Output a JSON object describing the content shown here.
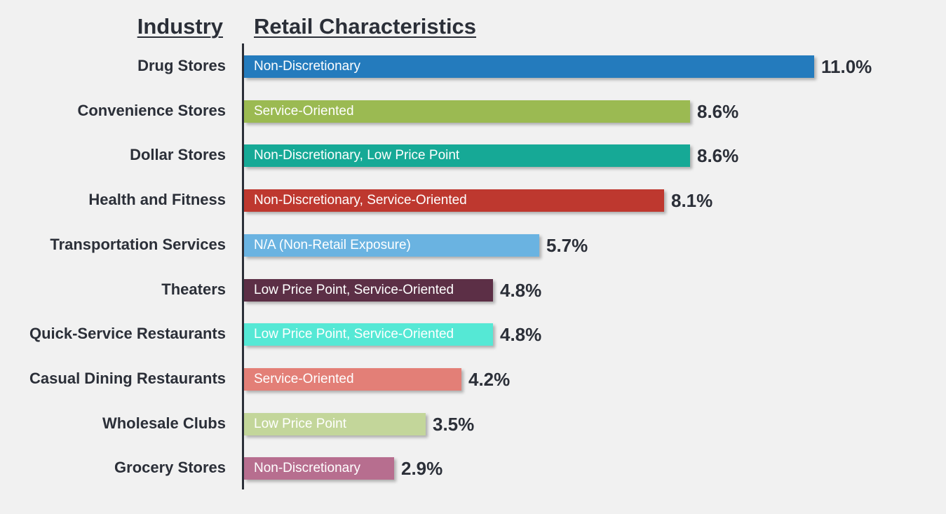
{
  "chart_data": {
    "type": "bar",
    "orientation": "horizontal",
    "title": "",
    "column_headers": {
      "category": "Industry",
      "description": "Retail Characteristics"
    },
    "xlabel": "",
    "ylabel": "",
    "xlim": [
      0,
      11.0
    ],
    "grid": false,
    "legend": "none",
    "categories": [
      "Drug Stores",
      "Convenience Stores",
      "Dollar Stores",
      "Health and Fitness",
      "Transportation Services",
      "Theaters",
      "Quick-Service Restaurants",
      "Casual Dining Restaurants",
      "Wholesale Clubs",
      "Grocery Stores"
    ],
    "values": [
      11.0,
      8.6,
      8.6,
      8.1,
      5.7,
      4.8,
      4.8,
      4.2,
      3.5,
      2.9
    ],
    "value_labels": [
      "11.0%",
      "8.6%",
      "8.6%",
      "8.1%",
      "5.7%",
      "4.8%",
      "4.8%",
      "4.2%",
      "3.5%",
      "2.9%"
    ],
    "bar_labels": [
      "Non-Discretionary",
      "Service-Oriented",
      "Non-Discretionary, Low Price Point",
      "Non-Discretionary, Service-Oriented",
      "N/A (Non-Retail Exposure)",
      "Low Price Point, Service-Oriented",
      "Low Price Point, Service-Oriented",
      "Service-Oriented",
      "Low Price Point",
      "Non-Discretionary"
    ],
    "colors": [
      "#247bbd",
      "#9bba52",
      "#16a996",
      "#be382f",
      "#6ab3e1",
      "#5c2f46",
      "#55e8d5",
      "#e37f77",
      "#c3d69a",
      "#b76e8f"
    ]
  }
}
